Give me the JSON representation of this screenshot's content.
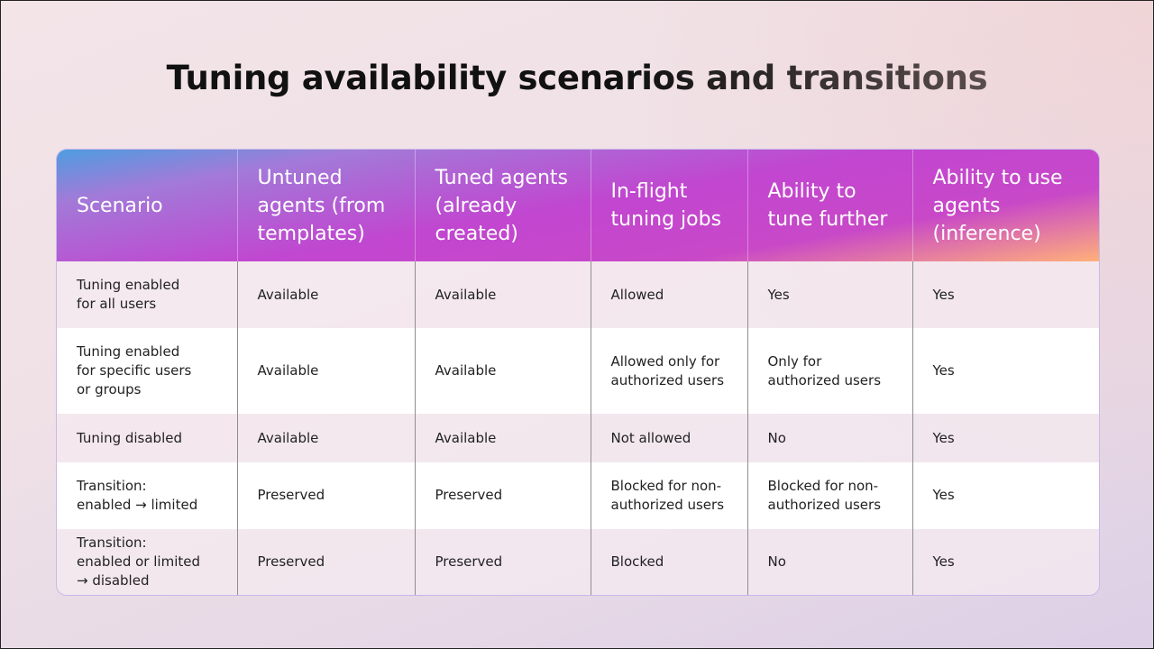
{
  "title": "Tuning availability scenarios and transitions",
  "table": {
    "header": [
      "Scenario",
      "Untuned agents (from templates)",
      "Tuned agents (already created)",
      "In-flight tuning jobs",
      "Ability to tune further",
      "Ability to use agents (inference)"
    ],
    "rows": [
      [
        "Tuning enabled for all users",
        "Available",
        "Available",
        "Allowed",
        "Yes",
        "Yes"
      ],
      [
        "Tuning enabled for specific users or groups",
        "Available",
        "Available",
        "Allowed only for authorized users",
        "Only for authorized users",
        "Yes"
      ],
      [
        "Tuning disabled",
        "Available",
        "Available",
        "Not allowed",
        "No",
        "Yes"
      ],
      [
        "Transition: enabled → limited",
        "Preserved",
        "Preserved",
        "Blocked for non-authorized users",
        "Blocked for non-authorized users",
        "Yes"
      ],
      [
        "Transition: enabled or limited → disabled",
        "Preserved",
        "Preserved",
        "Blocked",
        "No",
        "Yes"
      ]
    ]
  }
}
